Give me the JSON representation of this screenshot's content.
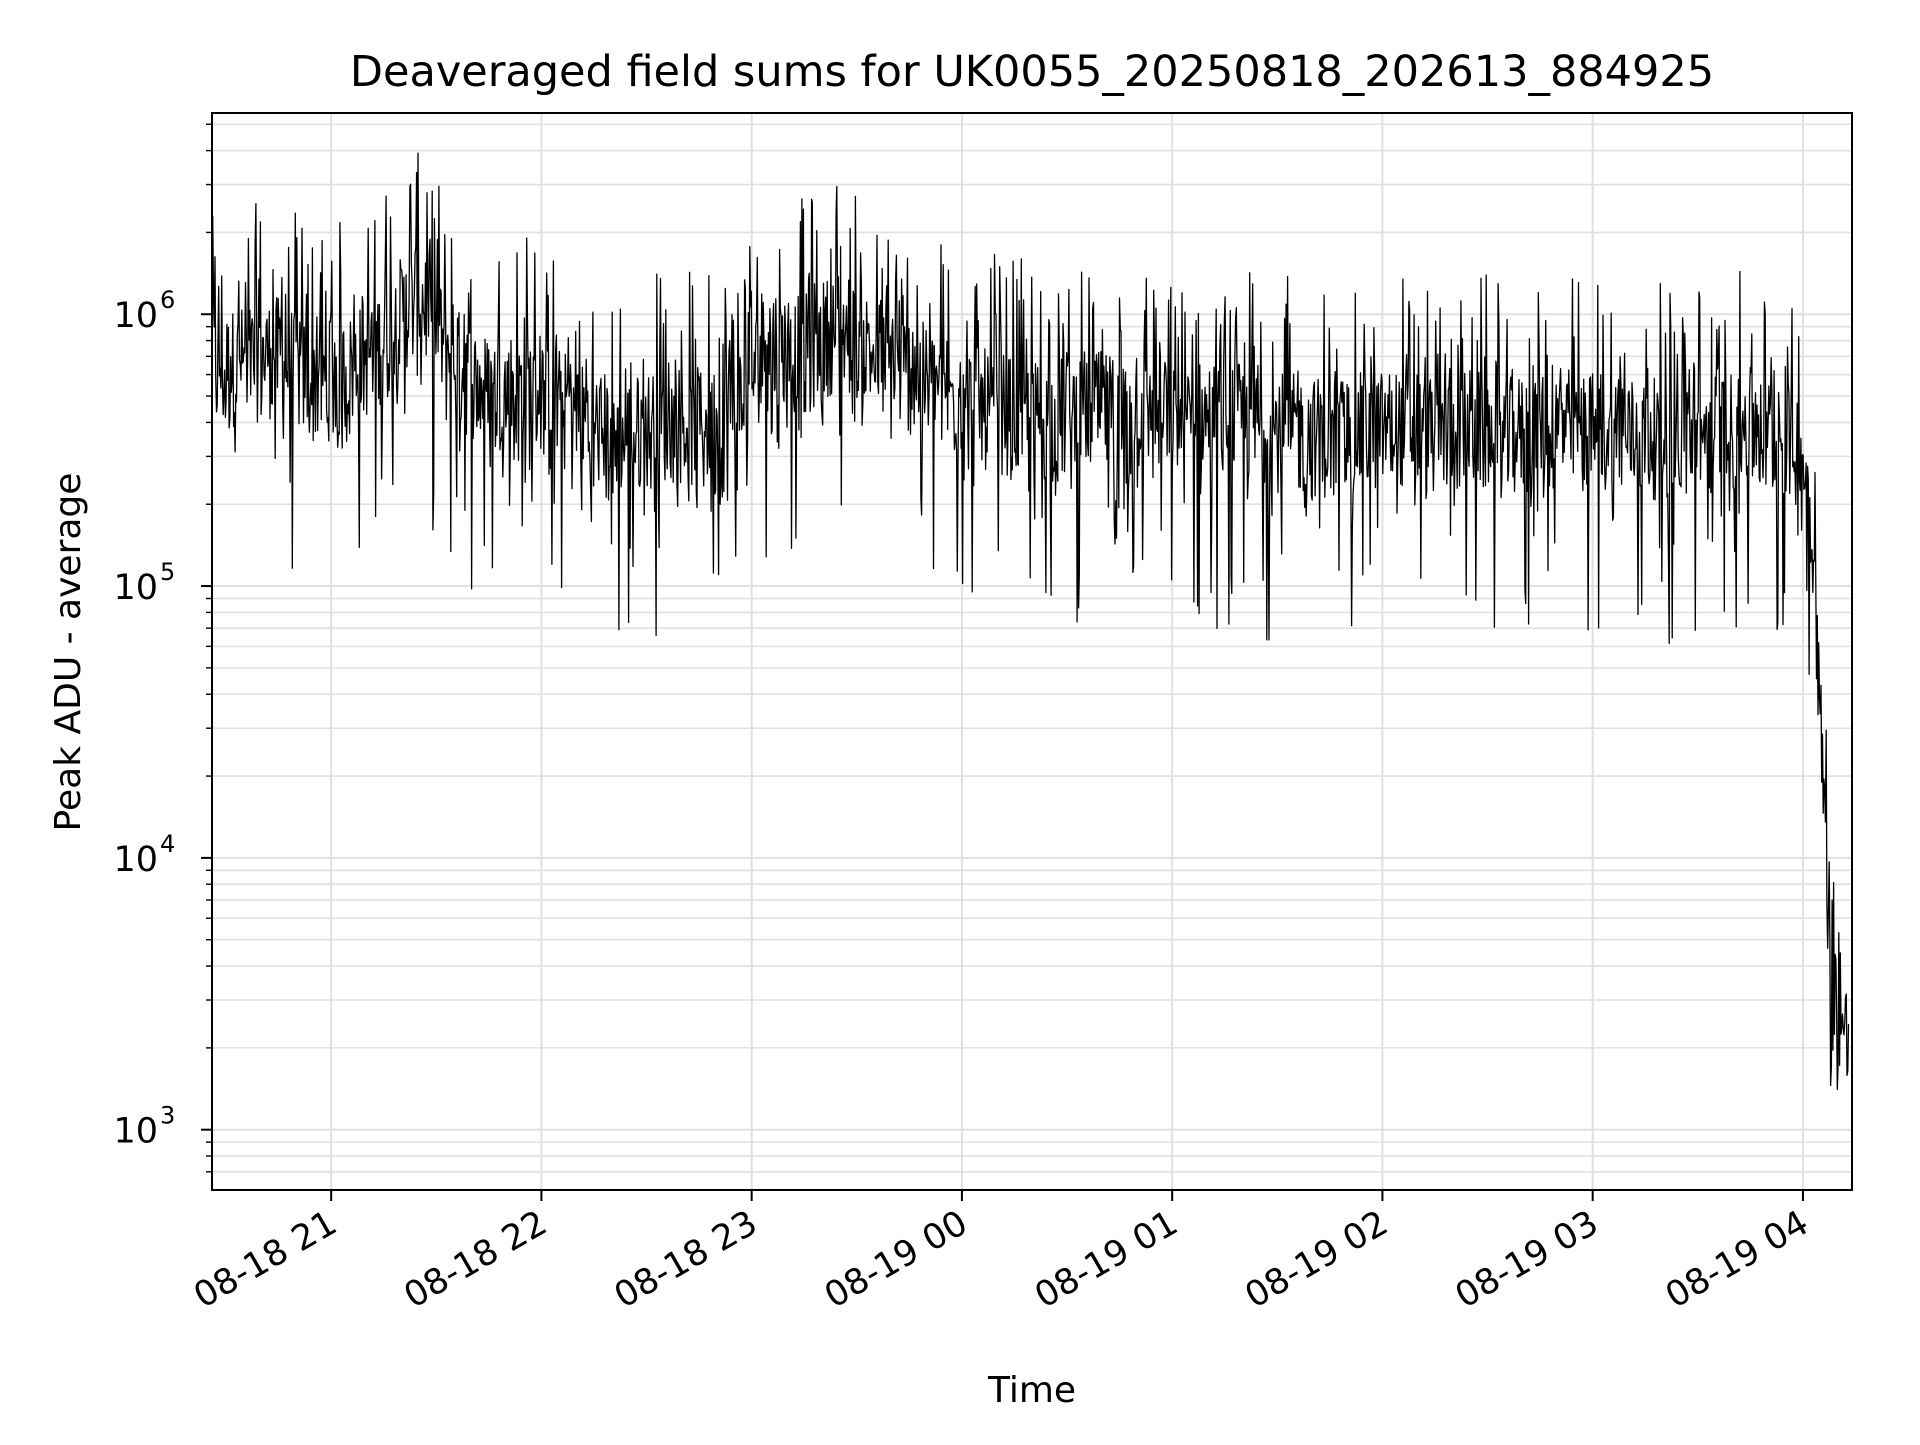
{
  "chart_data": {
    "type": "line",
    "title": "Deaveraged field sums for UK0055_20250818_202613_884925",
    "xlabel": "Time",
    "ylabel": "Peak ADU - average",
    "yscale": "log",
    "grid": true,
    "xlim": [
      "2025-08-18 20:26",
      "2025-08-19 04:14"
    ],
    "ylim": [
      600,
      5500000
    ],
    "x_ticks": [
      {
        "value": "2025-08-18 21:00",
        "label": "08-18 21"
      },
      {
        "value": "2025-08-18 22:00",
        "label": "08-18 22"
      },
      {
        "value": "2025-08-18 23:00",
        "label": "08-18 23"
      },
      {
        "value": "2025-08-19 00:00",
        "label": "08-19 00"
      },
      {
        "value": "2025-08-19 01:00",
        "label": "08-19 01"
      },
      {
        "value": "2025-08-19 02:00",
        "label": "08-19 02"
      },
      {
        "value": "2025-08-19 03:00",
        "label": "08-19 03"
      },
      {
        "value": "2025-08-19 04:00",
        "label": "08-19 04"
      }
    ],
    "y_ticks": [
      {
        "value": 1000,
        "base": "10",
        "exp": "3"
      },
      {
        "value": 10000,
        "base": "10",
        "exp": "4"
      },
      {
        "value": 100000,
        "base": "10",
        "exp": "5"
      },
      {
        "value": 1000000,
        "base": "10",
        "exp": "6"
      }
    ],
    "line_color": "#000000",
    "grid_color": "#e0e0e0",
    "series": [
      {
        "x": [
          "2025-08-18 20:26",
          "2025-08-18 20:35",
          "2025-08-18 20:45",
          "2025-08-18 20:55",
          "2025-08-18 21:05",
          "2025-08-18 21:15",
          "2025-08-18 21:25",
          "2025-08-18 21:35",
          "2025-08-18 21:45",
          "2025-08-18 21:55",
          "2025-08-18 22:05",
          "2025-08-18 22:15",
          "2025-08-18 22:25",
          "2025-08-18 22:35",
          "2025-08-18 22:45",
          "2025-08-18 22:55",
          "2025-08-18 23:05",
          "2025-08-18 23:15",
          "2025-08-18 23:25",
          "2025-08-18 23:35",
          "2025-08-18 23:45",
          "2025-08-18 23:55",
          "2025-08-19 00:05",
          "2025-08-19 00:15",
          "2025-08-19 00:25",
          "2025-08-19 00:35",
          "2025-08-19 00:45",
          "2025-08-19 00:55",
          "2025-08-19 01:05",
          "2025-08-19 01:15",
          "2025-08-19 01:25",
          "2025-08-19 01:35",
          "2025-08-19 01:45",
          "2025-08-19 01:55",
          "2025-08-19 02:05",
          "2025-08-19 02:15",
          "2025-08-19 02:25",
          "2025-08-19 02:35",
          "2025-08-19 02:45",
          "2025-08-19 02:55",
          "2025-08-19 03:05",
          "2025-08-19 03:15",
          "2025-08-19 03:25",
          "2025-08-19 03:35",
          "2025-08-19 03:45",
          "2025-08-19 03:55",
          "2025-08-19 04:00",
          "2025-08-19 04:03",
          "2025-08-19 04:05",
          "2025-08-19 04:07",
          "2025-08-19 04:09",
          "2025-08-19 04:11",
          "2025-08-19 04:13"
        ],
        "y": [
          600000,
          650000,
          700000,
          550000,
          600000,
          800000,
          1200000,
          650000,
          500000,
          550000,
          450000,
          380000,
          350000,
          400000,
          380000,
          420000,
          800000,
          700000,
          900000,
          700000,
          600000,
          500000,
          450000,
          420000,
          400000,
          450000,
          420000,
          430000,
          400000,
          420000,
          380000,
          360000,
          350000,
          370000,
          380000,
          360000,
          380000,
          350000,
          370000,
          380000,
          360000,
          350000,
          340000,
          360000,
          380000,
          350000,
          300000,
          150000,
          30000,
          8000,
          3000,
          2500,
          2000
        ]
      }
    ]
  }
}
